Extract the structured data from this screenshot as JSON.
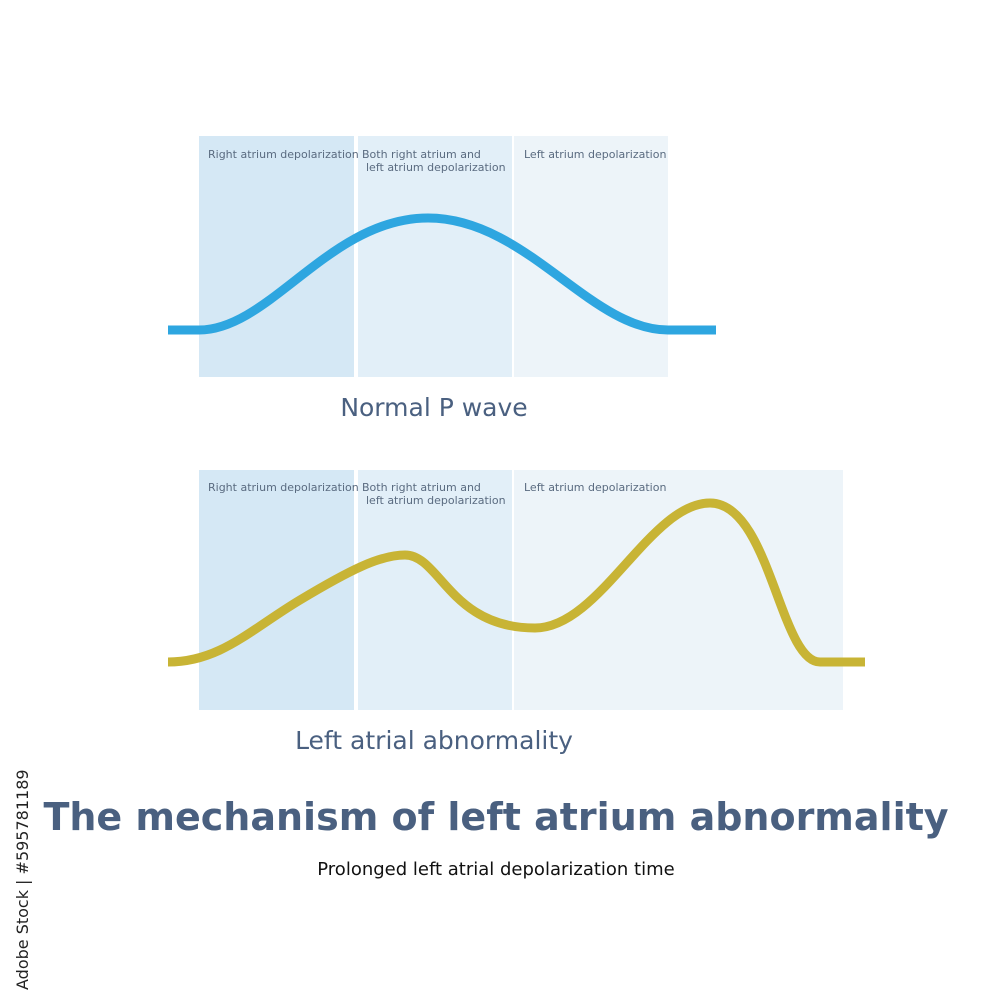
{
  "panels": [
    {
      "regions": [
        [
          "Right atrium depolarization"
        ],
        [
          "Both right atrium and",
          "left atrium depolarization"
        ],
        [
          "Left atrium depolarization"
        ]
      ],
      "caption": "Normal P wave"
    },
    {
      "regions": [
        [
          "Right atrium depolarization"
        ],
        [
          "Both right atrium and",
          "left atrium depolarization"
        ],
        [
          "Left atrium depolarization"
        ]
      ],
      "caption": "Left atrial abnormality"
    }
  ],
  "title": "The mechanism of left atrium abnormality",
  "subtitle": "Prolonged left atrial depolarization time",
  "watermark": "Adobe Stock | #595781189"
}
